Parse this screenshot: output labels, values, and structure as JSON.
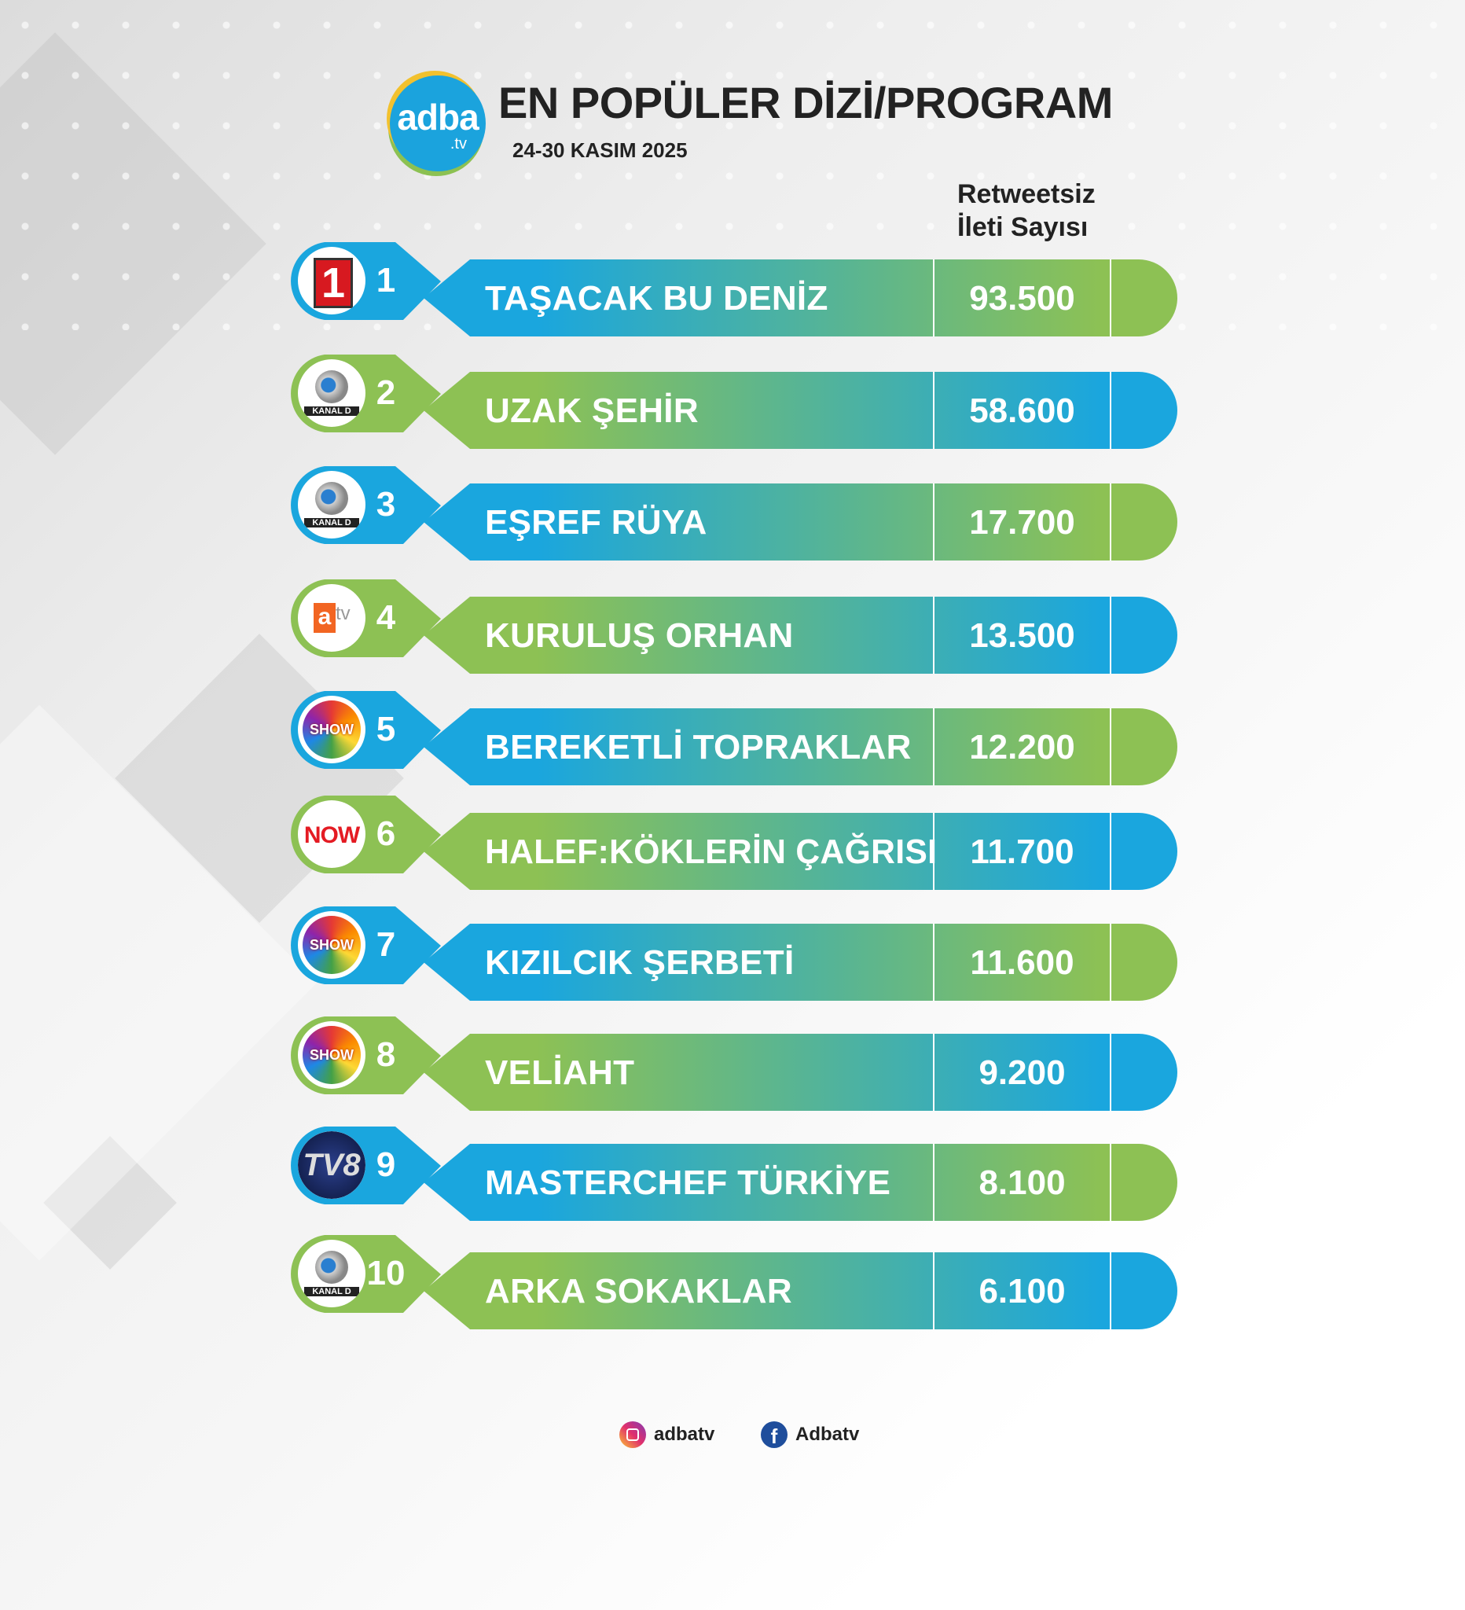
{
  "header": {
    "logo_text": "adba",
    "logo_suffix": ".tv",
    "title": "EN POPÜLER DİZİ/PROGRAM",
    "date": "24-30 KASIM 2025",
    "column_header_line1": "Retweetsiz",
    "column_header_line2": "İleti Sayısı"
  },
  "colors": {
    "blue": "#1aa6de",
    "green": "#8dc154"
  },
  "rows": [
    {
      "rank": "1",
      "title": "TAŞACAK BU DENİZ",
      "value": "93.500",
      "channel": "kanal-1",
      "badge": "blue"
    },
    {
      "rank": "2",
      "title": "UZAK ŞEHİR",
      "value": "58.600",
      "channel": "kanal-d",
      "badge": "green"
    },
    {
      "rank": "3",
      "title": "EŞREF RÜYA",
      "value": "17.700",
      "channel": "kanal-d",
      "badge": "blue"
    },
    {
      "rank": "4",
      "title": "KURULUŞ ORHAN",
      "value": "13.500",
      "channel": "atv",
      "badge": "green"
    },
    {
      "rank": "5",
      "title": "BEREKETLİ TOPRAKLAR",
      "value": "12.200",
      "channel": "show",
      "badge": "blue"
    },
    {
      "rank": "6",
      "title": "HALEF:KÖKLERİN ÇAĞRISI",
      "value": "11.700",
      "channel": "now",
      "badge": "green"
    },
    {
      "rank": "7",
      "title": "KIZILCIK ŞERBETİ",
      "value": "11.600",
      "channel": "show",
      "badge": "blue"
    },
    {
      "rank": "8",
      "title": "VELİAHT",
      "value": "9.200",
      "channel": "show",
      "badge": "green"
    },
    {
      "rank": "9",
      "title": "MASTERCHEF TÜRKİYE",
      "value": "8.100",
      "channel": "tv8",
      "badge": "blue"
    },
    {
      "rank": "10",
      "title": "ARKA SOKAKLAR",
      "value": "6.100",
      "channel": "kanal-d",
      "badge": "green"
    }
  ],
  "channel_logos": {
    "kanal_1": "1",
    "kanal_d": "KANAL D",
    "atv_a": "a",
    "atv_tv": "tv",
    "show": "SHOW",
    "now": "NOW",
    "tv8": "TV8"
  },
  "footer": {
    "instagram_icon": "instagram-icon",
    "instagram_handle": "adbatv",
    "facebook_icon": "facebook-icon",
    "facebook_handle": "Adbatv"
  }
}
